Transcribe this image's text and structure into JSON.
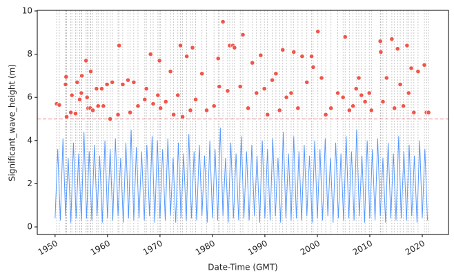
{
  "chart_data": {
    "type": "line",
    "xlabel": "Date-Time (GMT)",
    "ylabel": "Significant_wave_height (m)",
    "xlim": [
      1946.6,
      2025.0
    ],
    "ylim": [
      -0.35,
      10.03
    ],
    "xticks": [
      1950,
      1960,
      1970,
      1980,
      1990,
      2000,
      2010,
      2020
    ],
    "yticks": [
      0,
      2,
      4,
      6,
      8,
      10
    ],
    "threshold": 5,
    "threshold_color": "#f07070",
    "peak_lines": true,
    "series": [
      {
        "type": "line",
        "color": "#5599ff",
        "x": [
          1950,
          1950.5,
          1951,
          1951.5,
          1952,
          1952.5,
          1953,
          1953.5,
          1954,
          1954.5,
          1955,
          1955.5,
          1956,
          1956.5,
          1957,
          1957.5,
          1958,
          1958.5,
          1959,
          1959.5,
          1960,
          1960.5,
          1961,
          1961.5,
          1962,
          1962.5,
          1963,
          1963.5,
          1964,
          1964.5,
          1965,
          1965.5,
          1966,
          1966.5,
          1967,
          1967.5,
          1968,
          1968.5,
          1969,
          1969.5,
          1970,
          1970.5,
          1971,
          1971.5,
          1972,
          1972.5,
          1973,
          1973.5,
          1974,
          1974.5,
          1975,
          1975.5,
          1976,
          1976.5,
          1977,
          1977.5,
          1978,
          1978.5,
          1979,
          1979.5,
          1980,
          1980.5,
          1981,
          1981.5,
          1982,
          1982.5,
          1983,
          1983.5,
          1984,
          1984.5,
          1985,
          1985.5,
          1986,
          1986.5,
          1987,
          1987.5,
          1988,
          1988.5,
          1989,
          1989.5,
          1990,
          1990.5,
          1991,
          1991.5,
          1992,
          1992.5,
          1993,
          1993.5,
          1994,
          1994.5,
          1995,
          1995.5,
          1996,
          1996.5,
          1997,
          1997.5,
          1998,
          1998.5,
          1999,
          1999.5,
          2000,
          2000.5,
          2001,
          2001.5,
          2002,
          2002.5,
          2003,
          2003.5,
          2004,
          2004.5,
          2005,
          2005.5,
          2006,
          2006.5,
          2007,
          2007.5,
          2008,
          2008.5,
          2009,
          2009.5,
          2010,
          2010.5,
          2011,
          2011.5,
          2012,
          2012.5,
          2013,
          2013.5,
          2014,
          2014.5,
          2015,
          2015.5,
          2016,
          2016.5,
          2017,
          2017.5,
          2018,
          2018.5,
          2019,
          2019.5,
          2020,
          2020.5,
          2021
        ],
        "values": [
          0.4,
          3.6,
          0.3,
          4.1,
          0.5,
          3.2,
          0.2,
          3.9,
          0.4,
          3.4,
          0.3,
          4.4,
          0.4,
          3.5,
          0.3,
          3.8,
          0.5,
          3.3,
          0.2,
          4.0,
          0.4,
          3.6,
          0.3,
          4.1,
          0.5,
          3.2,
          0.2,
          3.9,
          0.4,
          4.5,
          0.3,
          3.7,
          0.4,
          3.5,
          0.3,
          3.8,
          0.5,
          4.2,
          0.2,
          4.0,
          0.4,
          3.6,
          0.3,
          4.1,
          0.5,
          3.2,
          0.2,
          3.9,
          0.4,
          3.4,
          0.3,
          4.3,
          0.4,
          3.5,
          0.3,
          3.8,
          0.5,
          3.3,
          0.2,
          4.0,
          0.4,
          3.6,
          0.3,
          4.6,
          0.5,
          3.2,
          0.2,
          3.9,
          0.4,
          3.4,
          0.3,
          4.2,
          0.4,
          3.5,
          0.3,
          3.8,
          0.5,
          3.3,
          0.2,
          4.0,
          0.4,
          3.6,
          0.3,
          4.1,
          0.5,
          3.2,
          0.2,
          4.4,
          0.4,
          3.4,
          0.3,
          4.2,
          0.4,
          3.5,
          0.3,
          3.8,
          0.5,
          3.3,
          0.2,
          4.0,
          0.4,
          3.6,
          0.3,
          4.1,
          0.5,
          3.2,
          0.2,
          3.9,
          0.4,
          3.4,
          0.3,
          4.2,
          0.4,
          3.5,
          0.3,
          4.5,
          0.5,
          3.3,
          0.2,
          4.0,
          0.4,
          3.6,
          0.3,
          4.1,
          0.5,
          3.2,
          0.2,
          3.9,
          0.4,
          3.4,
          0.3,
          4.2,
          0.4,
          3.5,
          0.3,
          3.8,
          0.5,
          3.3,
          0.2,
          4.0,
          0.4,
          3.6,
          0.3
        ]
      },
      {
        "type": "scatter",
        "color": "#f0554a",
        "x": [
          1950.3,
          1950.8,
          1952.0,
          1952.1,
          1952.2,
          1953.0,
          1953.2,
          1953.9,
          1954.2,
          1954.7,
          1955.0,
          1955.1,
          1955.9,
          1956.1,
          1956.3,
          1956.7,
          1956.8,
          1957.2,
          1957.9,
          1958.2,
          1958.9,
          1959.2,
          1959.9,
          1960.5,
          1960.9,
          1962.0,
          1962.2,
          1962.9,
          1963.9,
          1964.3,
          1965.0,
          1965.8,
          1967.1,
          1967.4,
          1968.2,
          1968.7,
          1969.6,
          1969.9,
          1970.1,
          1971.1,
          1972.0,
          1972.6,
          1973.4,
          1973.9,
          1974.3,
          1975.1,
          1975.8,
          1976.2,
          1976.8,
          1978.0,
          1978.9,
          1980.3,
          1981.1,
          1981.3,
          1982.0,
          1982.9,
          1983.3,
          1983.9,
          1984.2,
          1985.3,
          1985.8,
          1986.8,
          1987.6,
          1988.4,
          1989.2,
          1989.9,
          1990.5,
          1991.4,
          1992.1,
          1992.8,
          1993.4,
          1994.1,
          1995.0,
          1995.5,
          1996.3,
          1997.1,
          1998.0,
          1998.9,
          1999.2,
          2000.1,
          2000.8,
          2001.6,
          2002.6,
          2003.9,
          2004.9,
          2005.3,
          2006.1,
          2006.8,
          2007.4,
          2007.9,
          2008.4,
          2009.1,
          2009.9,
          2010.3,
          2012.0,
          2012.1,
          2012.5,
          2013.2,
          2014.2,
          2014.7,
          2015.3,
          2015.8,
          2016.4,
          2017.1,
          2017.4,
          2017.9,
          2018.4,
          2019.2,
          2020.4,
          2020.8,
          2021.2
        ],
        "values": [
          5.7,
          5.65,
          6.6,
          6.95,
          5.1,
          5.3,
          6.1,
          5.25,
          6.7,
          5.9,
          6.2,
          7.0,
          7.7,
          6.0,
          5.5,
          5.5,
          7.2,
          5.4,
          6.4,
          5.6,
          6.4,
          5.6,
          6.6,
          5.0,
          6.7,
          5.2,
          8.4,
          6.6,
          6.8,
          5.3,
          6.7,
          5.6,
          5.9,
          6.4,
          8.0,
          5.7,
          6.1,
          7.7,
          5.5,
          5.8,
          7.2,
          5.2,
          6.1,
          8.4,
          5.1,
          7.9,
          5.4,
          8.3,
          5.9,
          7.1,
          5.4,
          5.6,
          7.8,
          6.5,
          9.5,
          6.3,
          8.4,
          8.4,
          8.3,
          6.5,
          8.9,
          5.5,
          7.6,
          6.2,
          7.95,
          6.4,
          5.2,
          6.8,
          7.1,
          5.4,
          8.2,
          6.0,
          6.2,
          8.1,
          5.5,
          7.9,
          6.7,
          7.9,
          7.4,
          9.05,
          6.9,
          5.2,
          5.5,
          6.2,
          6.0,
          8.8,
          5.4,
          5.6,
          6.4,
          6.9,
          6.1,
          5.8,
          6.2,
          5.4,
          8.6,
          8.1,
          5.8,
          6.9,
          8.7,
          5.5,
          8.25,
          6.6,
          5.6,
          8.4,
          6.2,
          7.35,
          5.3,
          7.2,
          7.5,
          5.3,
          5.3
        ]
      }
    ]
  }
}
